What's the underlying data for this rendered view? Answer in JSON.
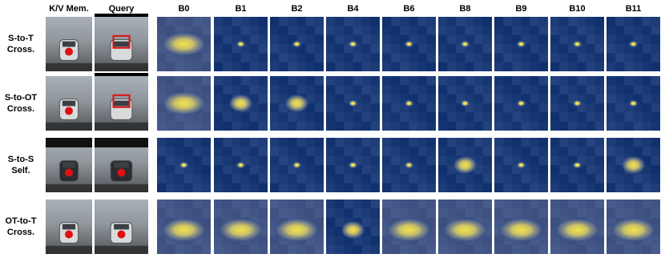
{
  "columns": [
    "K/V Mem.",
    "Query",
    "B0",
    "B1",
    "B2",
    "B4",
    "B6",
    "B8",
    "B9",
    "B10",
    "B11"
  ],
  "rows": [
    {
      "label": [
        "S-to-T",
        "Cross."
      ]
    },
    {
      "label": [
        "S-to-OT",
        "Cross."
      ]
    },
    {
      "label": [
        "S-to-S",
        "Self."
      ]
    },
    {
      "label": [
        "OT-to-T",
        "Cross."
      ]
    }
  ]
}
